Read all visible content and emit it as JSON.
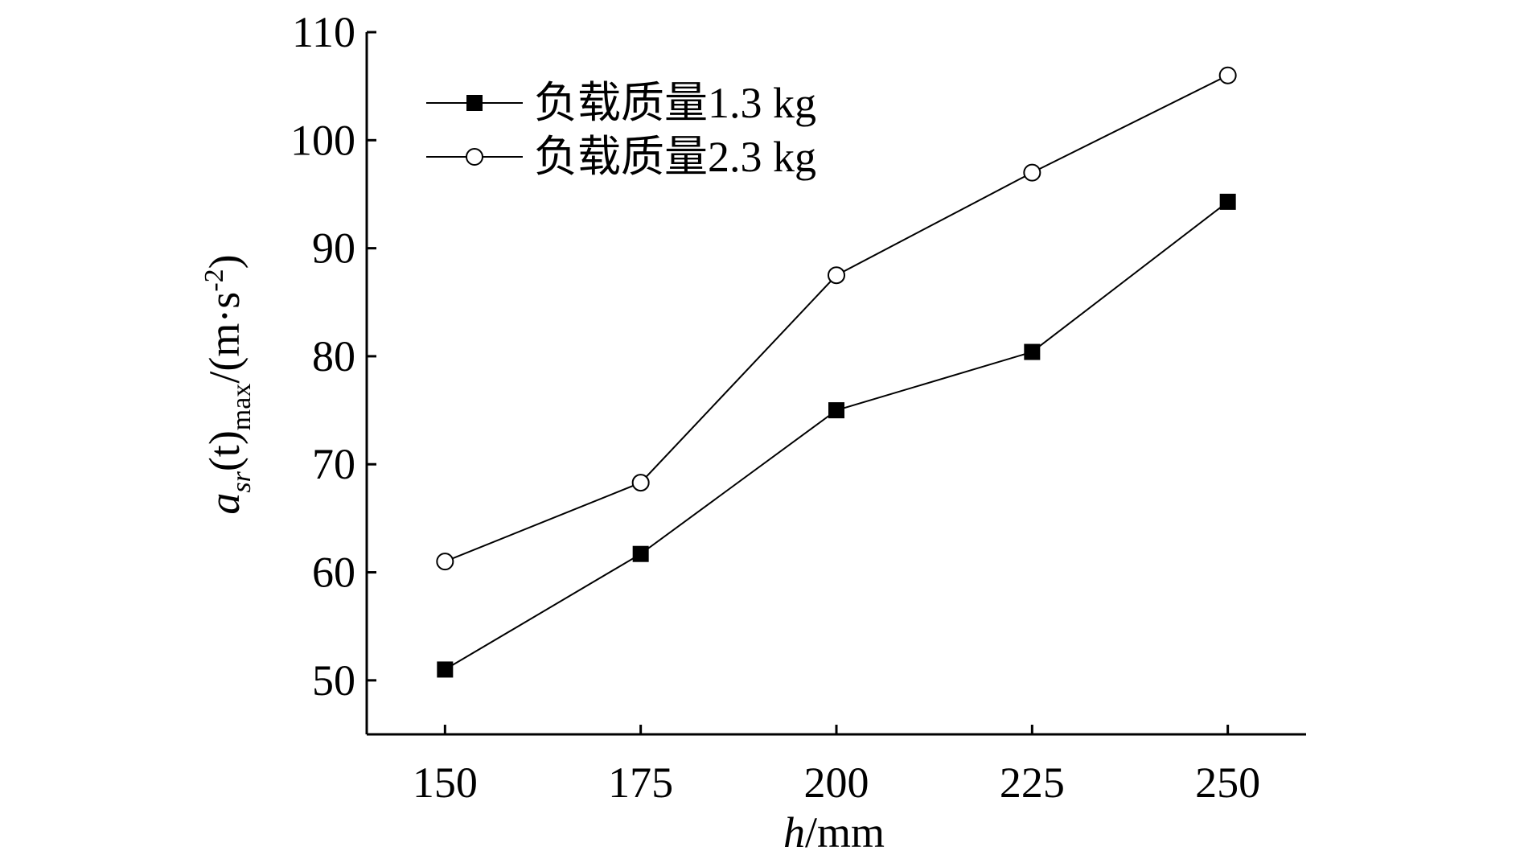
{
  "chart_data": {
    "type": "line",
    "title": "",
    "x": [
      150,
      175,
      200,
      225,
      250
    ],
    "xlim": [
      140,
      260
    ],
    "ylim": [
      45,
      110
    ],
    "x_ticks": [
      150,
      175,
      200,
      225,
      250
    ],
    "y_ticks": [
      50,
      60,
      70,
      80,
      90,
      100,
      110
    ],
    "xlabel_italic": "h",
    "xlabel_rest": "/mm",
    "ylabel_main": "a",
    "ylabel_sub": "sr",
    "ylabel_mid": "(t)",
    "ylabel_sub2": "max",
    "ylabel_unit": "/(m·s",
    "ylabel_sup": "-2",
    "ylabel_close": ")",
    "legend_position": "top-left",
    "grid": false,
    "series": [
      {
        "name": "负载质量1.3 kg",
        "marker": "filled-square",
        "values": [
          51.0,
          61.7,
          75.0,
          80.4,
          94.3
        ]
      },
      {
        "name": "负载质量2.3 kg",
        "marker": "open-circle",
        "values": [
          61.0,
          68.3,
          87.5,
          97.0,
          106.0
        ]
      }
    ]
  }
}
